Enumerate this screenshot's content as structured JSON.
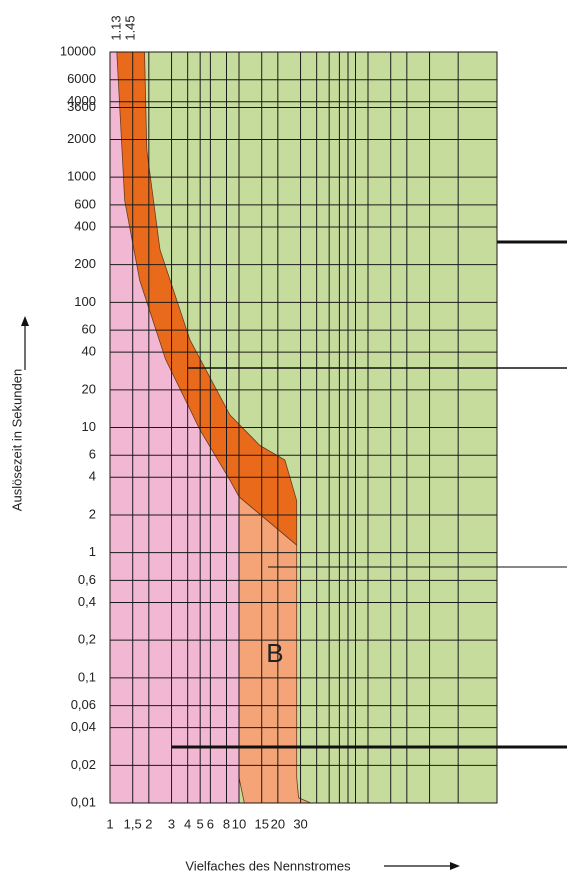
{
  "chart_data": {
    "type": "trip-curve",
    "ylabel": "Auslösezeit in Sekunden",
    "xlabel": "Vielfaches des Nennstromes",
    "log_x": true,
    "log_y": true,
    "grid": true,
    "xlim": [
      1,
      1000
    ],
    "ylim": [
      0.01,
      10000
    ],
    "xticks": [
      1,
      {
        "value": 1.5,
        "label": "1,5"
      },
      2,
      3,
      4,
      5,
      6,
      8,
      10,
      15,
      20,
      30
    ],
    "x_grid": [
      40,
      50,
      60,
      70,
      80,
      100,
      150,
      200,
      300,
      500
    ],
    "top_ticks": [
      1.13,
      1.45
    ],
    "yticks": [
      10000,
      6000,
      4000,
      3600,
      2000,
      1000,
      600,
      400,
      200,
      100,
      60,
      40,
      20,
      10,
      6,
      4,
      2,
      1,
      {
        "value": 0.6,
        "label": "0,6"
      },
      {
        "value": 0.4,
        "label": "0,4"
      },
      {
        "value": 0.2,
        "label": "0,2"
      },
      {
        "value": 0.1,
        "label": "0,1"
      },
      {
        "value": 0.06,
        "label": "0,06"
      },
      {
        "value": 0.04,
        "label": "0,04"
      },
      {
        "value": 0.02,
        "label": "0,02"
      },
      {
        "value": 0.01,
        "label": "0,01"
      }
    ],
    "colors": {
      "trip_zone": "#c6dc9c",
      "no_trip_zone": "#f2b8d3",
      "grid": "#1a1a1a"
    },
    "band": {
      "color": "#ea6a1c",
      "lower_x": [
        1.13,
        1.3,
        1.7,
        2.7,
        5,
        8.5,
        10,
        28
      ],
      "lower_y": [
        10000,
        650,
        150,
        35,
        9.5,
        3.8,
        2.8,
        1.15
      ],
      "upper_x": [
        1.85,
        1.93,
        2.44,
        4.17,
        8.5,
        14.5,
        22.7,
        28,
        28
      ],
      "upper_y": [
        10000,
        1650,
        263,
        50,
        12.6,
        7.2,
        5.5,
        2.6,
        1.15
      ]
    },
    "instant_region": {
      "color": "#f4a477",
      "label": "B",
      "x": [
        10,
        28,
        28,
        29,
        36,
        11,
        10
      ],
      "y": [
        2.8,
        1.15,
        0.016,
        0.011,
        0.01,
        0.01,
        0.016
      ]
    }
  }
}
